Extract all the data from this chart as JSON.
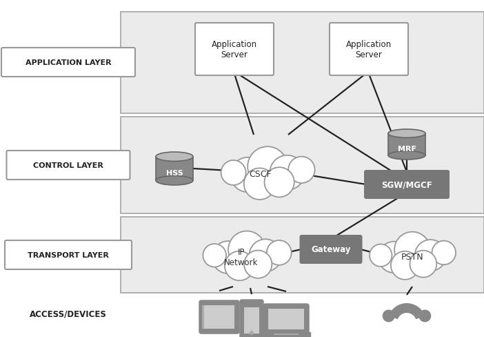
{
  "fig_width": 7.02,
  "fig_height": 4.89,
  "dpi": 100,
  "bg_color": "#ffffff",
  "layer_bg": "#ebebeb",
  "layer_border": "#aaaaaa",
  "label_box_bg": "#ffffff",
  "label_box_border": "#999999",
  "dark_box_bg": "#777777",
  "dark_box_text": "#ffffff",
  "cloud_fill": "#ffffff",
  "cloud_border": "#999999",
  "cyl_body": "#888888",
  "cyl_top": "#bbbbbb",
  "cyl_border": "#666666",
  "line_color": "#222222",
  "text_dark": "#333333",
  "label_text": "#222222",
  "device_color": "#888888",
  "access_label": "ACCESS/DEVICES",
  "app_layer_label": "APPLICATION LAYER",
  "ctrl_layer_label": "CONTROL LAYER",
  "trans_layer_label": "TRANSPORT LAYER"
}
